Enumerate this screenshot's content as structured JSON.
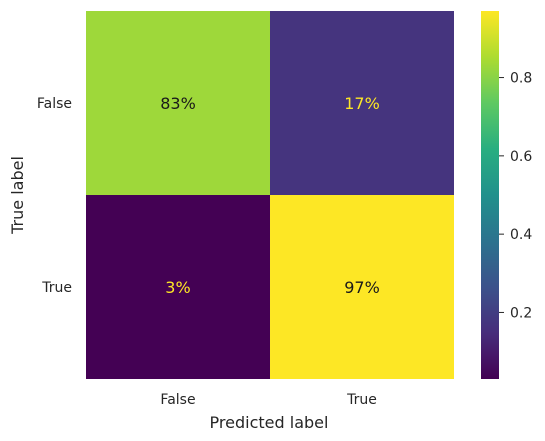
{
  "chart_data": {
    "type": "heatmap",
    "title": "",
    "xlabel": "Predicted label",
    "ylabel": "True label",
    "x_categories": [
      "False",
      "True"
    ],
    "y_categories": [
      "False",
      "True"
    ],
    "values": [
      [
        0.83,
        0.17
      ],
      [
        0.03,
        0.97
      ]
    ],
    "cell_labels": [
      [
        "83%",
        "17%"
      ],
      [
        "3%",
        "97%"
      ]
    ],
    "colormap": "viridis",
    "colorbar": {
      "range": [
        0.03,
        0.97
      ],
      "ticks": [
        0.2,
        0.4,
        0.6,
        0.8
      ],
      "tick_labels": [
        "0.2",
        "0.4",
        "0.6",
        "0.8"
      ]
    },
    "grid": false
  }
}
